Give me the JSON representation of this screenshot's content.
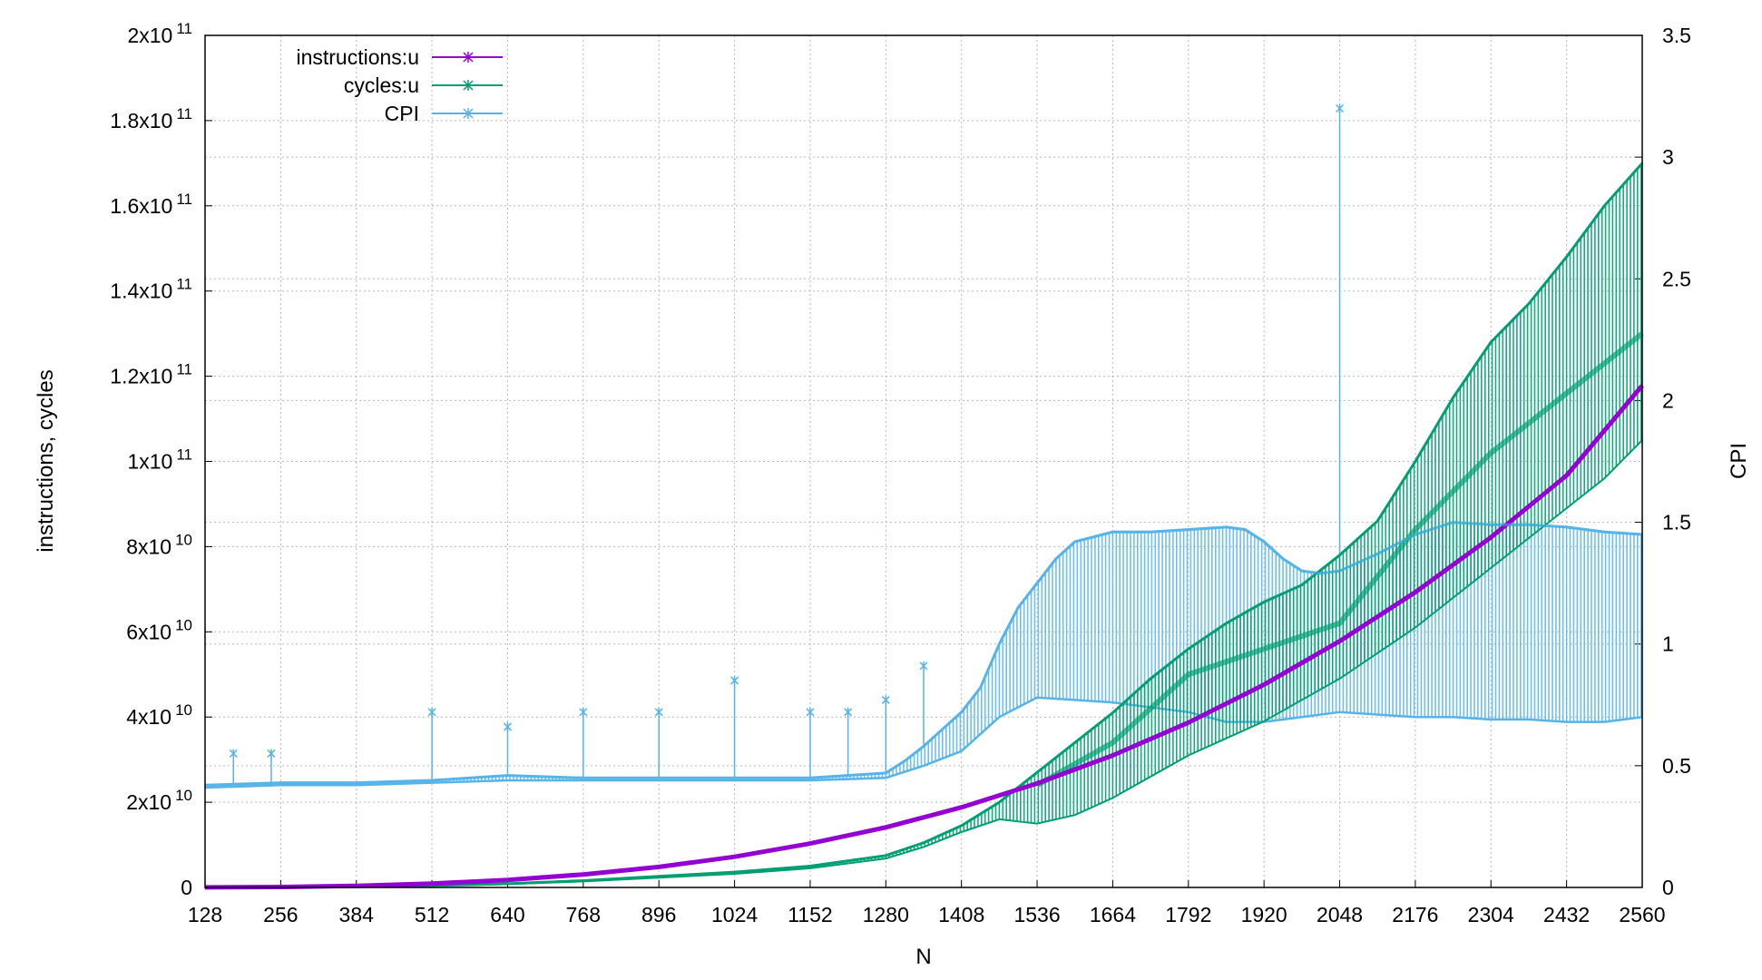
{
  "chart_data": {
    "type": "line",
    "xlabel": "N",
    "ylabel": "instructions, cycles",
    "y2label": "CPI",
    "xlim": [
      128,
      2560
    ],
    "ylim": [
      0,
      200000000000
    ],
    "y2lim": [
      0,
      3.5
    ],
    "grid": true,
    "legend_position": "top-left",
    "x_ticks": [
      "128",
      "256",
      "384",
      "512",
      "640",
      "768",
      "896",
      "1024",
      "1152",
      "1280",
      "1408",
      "1536",
      "1664",
      "1792",
      "1920",
      "2048",
      "2176",
      "2304",
      "2432",
      "2560"
    ],
    "y_ticks": [
      {
        "base": "0",
        "exp": ""
      },
      {
        "base": "2x10",
        "exp": "10"
      },
      {
        "base": "4x10",
        "exp": "10"
      },
      {
        "base": "6x10",
        "exp": "10"
      },
      {
        "base": "8x10",
        "exp": "10"
      },
      {
        "base": "1x10",
        "exp": "11"
      },
      {
        "base": "1.2x10",
        "exp": "11"
      },
      {
        "base": "1.4x10",
        "exp": "11"
      },
      {
        "base": "1.6x10",
        "exp": "11"
      },
      {
        "base": "1.8x10",
        "exp": "11"
      },
      {
        "base": "2x10",
        "exp": "11"
      }
    ],
    "y2_ticks": [
      "0",
      "0.5",
      "1",
      "1.5",
      "2",
      "2.5",
      "3",
      "3.5"
    ],
    "series": [
      {
        "name": "instructions:u",
        "axis": "y1",
        "color": "#9400d3",
        "points": [
          [
            128,
            14000000.0
          ],
          [
            256,
            110000000.0
          ],
          [
            384,
            380000000.0
          ],
          [
            512,
            900000000.0
          ],
          [
            640,
            1760000000.0
          ],
          [
            768,
            3040000000.0
          ],
          [
            896,
            4820000000.0
          ],
          [
            1024,
            7200000000.0
          ],
          [
            1152,
            10300000000.0
          ],
          [
            1280,
            14100000000.0
          ],
          [
            1408,
            18800000000.0
          ],
          [
            1536,
            24400000000.0
          ],
          [
            1664,
            31000000000.0
          ],
          [
            1792,
            38700000000.0
          ],
          [
            1920,
            47600000000.0
          ],
          [
            2048,
            57800000000.0
          ],
          [
            2176,
            69300000000.0
          ],
          [
            2304,
            82200000000.0
          ],
          [
            2432,
            96700000000.0
          ],
          [
            2560,
            117800000000.0
          ]
        ]
      },
      {
        "name": "cycles:u",
        "axis": "y1",
        "color": "#009e73",
        "upper": [
          [
            128,
            6000000.0
          ],
          [
            256,
            50000000.0
          ],
          [
            384,
            160000000.0
          ],
          [
            512,
            420000000.0
          ],
          [
            640,
            880000000.0
          ],
          [
            768,
            1600000000.0
          ],
          [
            896,
            2600000000.0
          ],
          [
            1024,
            3600000000.0
          ],
          [
            1152,
            5000000000.0
          ],
          [
            1280,
            7500000000.0
          ],
          [
            1344,
            10500000000.0
          ],
          [
            1408,
            14500000000.0
          ],
          [
            1472,
            20000000000.0
          ],
          [
            1536,
            27000000000.0
          ],
          [
            1600,
            34000000000.0
          ],
          [
            1664,
            41000000000.0
          ],
          [
            1728,
            49000000000.0
          ],
          [
            1792,
            56000000000.0
          ],
          [
            1856,
            62000000000.0
          ],
          [
            1920,
            67000000000.0
          ],
          [
            1984,
            71000000000.0
          ],
          [
            2048,
            78000000000.0
          ],
          [
            2112,
            86000000000.0
          ],
          [
            2176,
            100000000000.0
          ],
          [
            2240,
            115000000000.0
          ],
          [
            2304,
            128000000000.0
          ],
          [
            2368,
            137000000000.0
          ],
          [
            2432,
            148000000000.0
          ],
          [
            2496,
            160000000000.0
          ],
          [
            2560,
            170000000000.0
          ]
        ],
        "lower": [
          [
            128,
            5000000.0
          ],
          [
            256,
            40000000.0
          ],
          [
            384,
            140000000.0
          ],
          [
            512,
            360000000.0
          ],
          [
            640,
            760000000.0
          ],
          [
            768,
            1400000000.0
          ],
          [
            896,
            2300000000.0
          ],
          [
            1024,
            3200000000.0
          ],
          [
            1152,
            4500000000.0
          ],
          [
            1280,
            6800000000.0
          ],
          [
            1344,
            9500000000.0
          ],
          [
            1408,
            13000000000.0
          ],
          [
            1472,
            16000000000.0
          ],
          [
            1536,
            15000000000.0
          ],
          [
            1600,
            17000000000.0
          ],
          [
            1664,
            21000000000.0
          ],
          [
            1728,
            26000000000.0
          ],
          [
            1792,
            31000000000.0
          ],
          [
            1856,
            35000000000.0
          ],
          [
            1920,
            39000000000.0
          ],
          [
            1984,
            44000000000.0
          ],
          [
            2048,
            49000000000.0
          ],
          [
            2112,
            55000000000.0
          ],
          [
            2176,
            61000000000.0
          ],
          [
            2240,
            68000000000.0
          ],
          [
            2304,
            75000000000.0
          ],
          [
            2368,
            82000000000.0
          ],
          [
            2432,
            89000000000.0
          ],
          [
            2496,
            96000000000.0
          ],
          [
            2560,
            105000000000.0
          ]
        ],
        "mid": [
          [
            1536,
            24000000000.0
          ],
          [
            1664,
            34000000000.0
          ],
          [
            1792,
            50000000000.0
          ],
          [
            1920,
            56000000000.0
          ],
          [
            2048,
            62000000000.0
          ],
          [
            2176,
            84000000000.0
          ],
          [
            2304,
            102000000000.0
          ],
          [
            2432,
            116000000000.0
          ],
          [
            2560,
            130000000000.0
          ]
        ]
      },
      {
        "name": "CPI",
        "axis": "y2",
        "color": "#56b4e9",
        "upper": [
          [
            128,
            0.42
          ],
          [
            256,
            0.43
          ],
          [
            384,
            0.43
          ],
          [
            512,
            0.44
          ],
          [
            640,
            0.46
          ],
          [
            768,
            0.45
          ],
          [
            896,
            0.45
          ],
          [
            1024,
            0.45
          ],
          [
            1152,
            0.45
          ],
          [
            1280,
            0.47
          ],
          [
            1312,
            0.52
          ],
          [
            1344,
            0.58
          ],
          [
            1376,
            0.65
          ],
          [
            1408,
            0.72
          ],
          [
            1440,
            0.82
          ],
          [
            1472,
            1.0
          ],
          [
            1504,
            1.15
          ],
          [
            1536,
            1.25
          ],
          [
            1568,
            1.35
          ],
          [
            1600,
            1.42
          ],
          [
            1664,
            1.46
          ],
          [
            1728,
            1.46
          ],
          [
            1792,
            1.47
          ],
          [
            1856,
            1.48
          ],
          [
            1888,
            1.47
          ],
          [
            1920,
            1.42
          ],
          [
            1952,
            1.35
          ],
          [
            1984,
            1.3
          ],
          [
            2016,
            1.29
          ],
          [
            2048,
            1.3
          ],
          [
            2112,
            1.37
          ],
          [
            2176,
            1.45
          ],
          [
            2240,
            1.5
          ],
          [
            2304,
            1.49
          ],
          [
            2368,
            1.49
          ],
          [
            2432,
            1.48
          ],
          [
            2496,
            1.46
          ],
          [
            2560,
            1.45
          ]
        ],
        "lower": [
          [
            128,
            0.41
          ],
          [
            256,
            0.42
          ],
          [
            384,
            0.42
          ],
          [
            512,
            0.43
          ],
          [
            640,
            0.44
          ],
          [
            768,
            0.44
          ],
          [
            896,
            0.44
          ],
          [
            1024,
            0.44
          ],
          [
            1152,
            0.44
          ],
          [
            1280,
            0.45
          ],
          [
            1344,
            0.5
          ],
          [
            1408,
            0.56
          ],
          [
            1472,
            0.7
          ],
          [
            1536,
            0.78
          ],
          [
            1600,
            0.77
          ],
          [
            1664,
            0.76
          ],
          [
            1728,
            0.74
          ],
          [
            1792,
            0.72
          ],
          [
            1856,
            0.68
          ],
          [
            1920,
            0.68
          ],
          [
            1984,
            0.7
          ],
          [
            2048,
            0.72
          ],
          [
            2112,
            0.71
          ],
          [
            2176,
            0.7
          ],
          [
            2240,
            0.7
          ],
          [
            2304,
            0.69
          ],
          [
            2368,
            0.69
          ],
          [
            2432,
            0.68
          ],
          [
            2496,
            0.68
          ],
          [
            2560,
            0.7
          ]
        ],
        "outliers": [
          [
            176,
            0.55
          ],
          [
            240,
            0.55
          ],
          [
            512,
            0.72
          ],
          [
            640,
            0.66
          ],
          [
            768,
            0.72
          ],
          [
            896,
            0.72
          ],
          [
            1024,
            0.85
          ],
          [
            1152,
            0.72
          ],
          [
            1216,
            0.72
          ],
          [
            1280,
            0.77
          ],
          [
            1344,
            0.91
          ],
          [
            2048,
            3.2
          ]
        ]
      }
    ]
  }
}
